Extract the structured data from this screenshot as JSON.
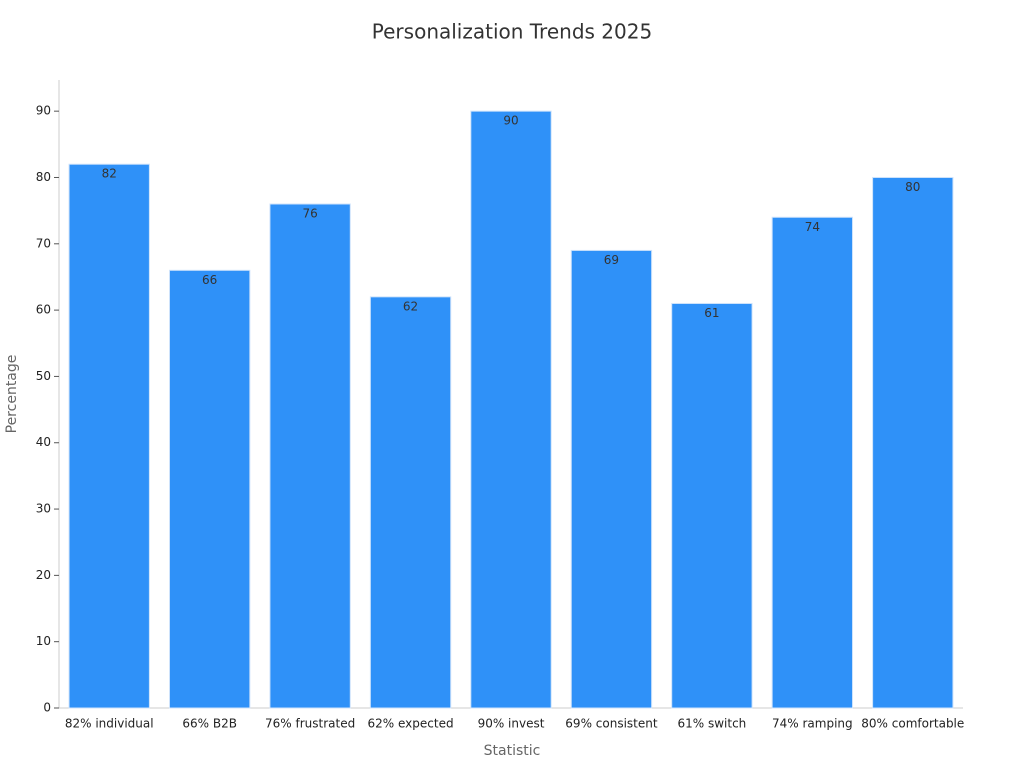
{
  "chart_data": {
    "type": "bar",
    "title": "Personalization Trends 2025",
    "x_label": "Statistic",
    "y_label": "Percentage",
    "categories": [
      "82% individual",
      "66% B2B",
      "76% frustrated",
      "62% expected",
      "90% invest",
      "69% consistent",
      "61% switch",
      "74% ramping",
      "80% comfortable"
    ],
    "values": [
      82,
      66,
      76,
      62,
      90,
      69,
      61,
      74,
      80
    ],
    "color": "#2f91f8",
    "ylim": [
      0,
      94.7
    ],
    "yticks": [
      0,
      10,
      20,
      30,
      40,
      50,
      60,
      70,
      80,
      90
    ],
    "grid": false
  }
}
